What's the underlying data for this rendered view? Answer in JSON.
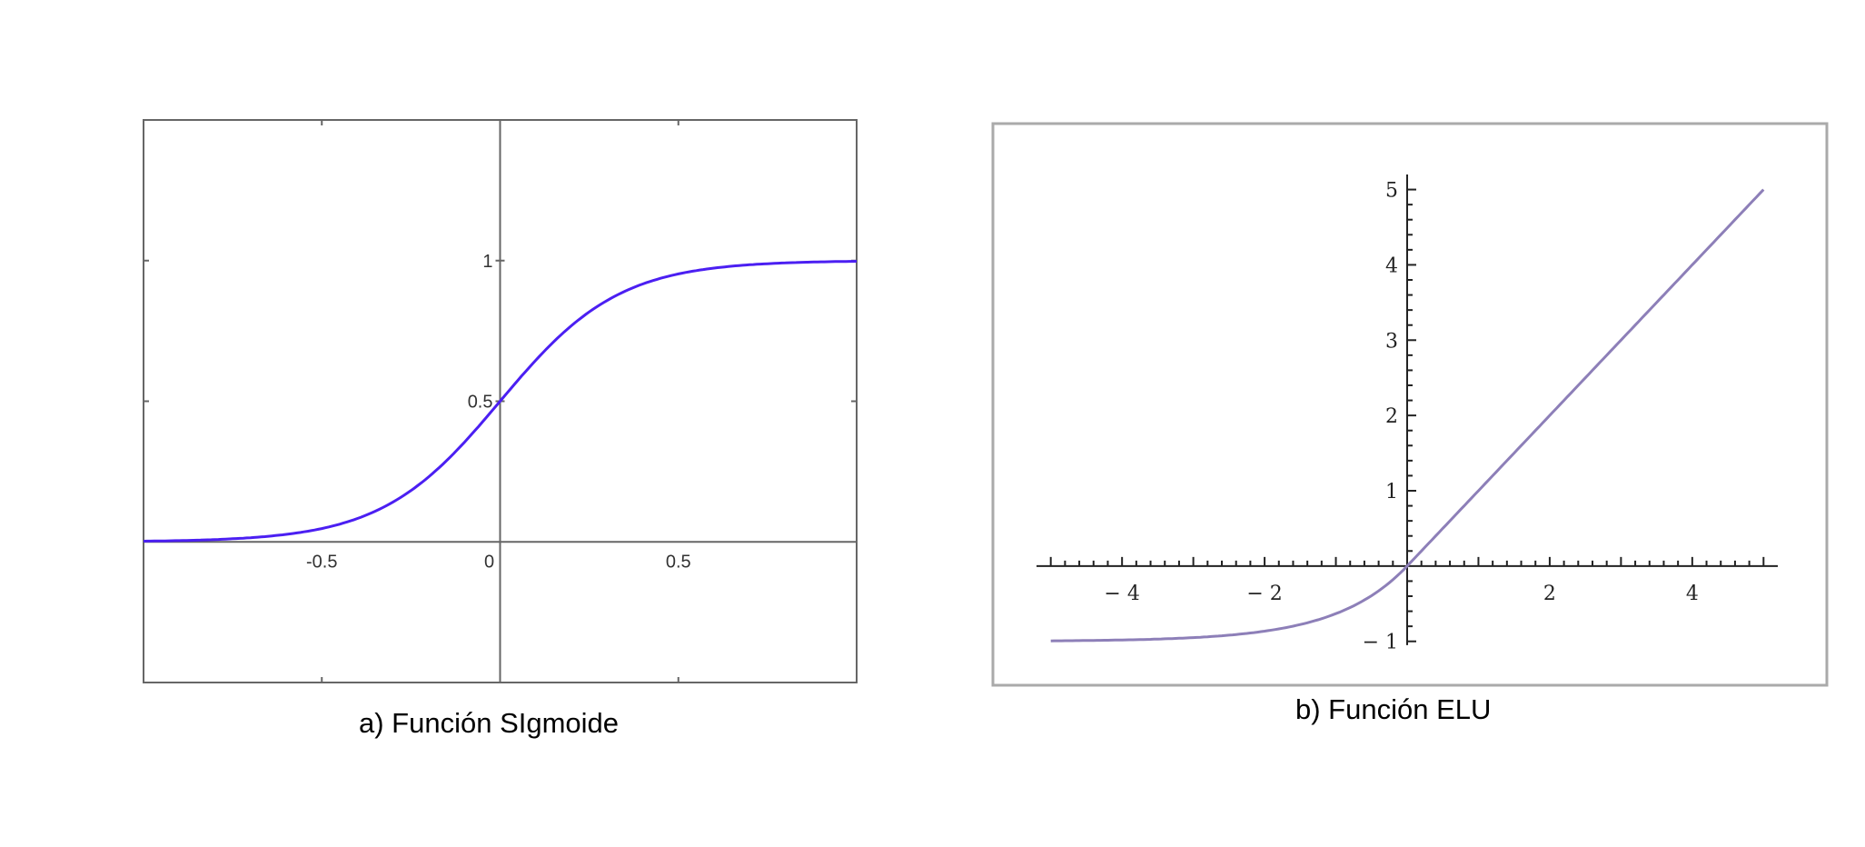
{
  "chart_data": [
    {
      "type": "line",
      "caption": "a) Función SIgmoide",
      "title": "",
      "xlabel": "",
      "ylabel": "",
      "xlim": [
        -1,
        1
      ],
      "ylim": [
        -0.5,
        1.5
      ],
      "x_ticks": [
        -0.5,
        0,
        0.5
      ],
      "x_tick_labels": [
        "-0.5",
        "0",
        "0.5"
      ],
      "y_ticks": [
        0.5,
        1
      ],
      "y_tick_labels": [
        "0.5",
        "1"
      ],
      "grid": false,
      "frame": true,
      "series": [
        {
          "color": "#4b1ff2",
          "x": [
            -1,
            -0.9,
            -0.8,
            -0.7,
            -0.6,
            -0.5,
            -0.4,
            -0.3,
            -0.2,
            -0.1,
            0,
            0.1,
            0.2,
            0.3,
            0.4,
            0.5,
            0.6,
            0.7,
            0.8,
            0.9,
            1
          ],
          "y": [
            0.002,
            0.004,
            0.008,
            0.018,
            0.035,
            0.063,
            0.11,
            0.19,
            0.29,
            0.38,
            0.5,
            0.62,
            0.71,
            0.81,
            0.89,
            0.937,
            0.965,
            0.982,
            0.99,
            0.996,
            0.998
          ]
        }
      ]
    },
    {
      "type": "line",
      "caption": "b) Función ELU",
      "title": "",
      "xlabel": "",
      "ylabel": "",
      "xlim": [
        -5.2,
        5.2
      ],
      "ylim": [
        -1.1,
        5.2
      ],
      "x_ticks": [
        -4,
        -2,
        2,
        4
      ],
      "x_tick_labels": [
        "− 4",
        "− 2",
        "2",
        "4"
      ],
      "y_ticks": [
        -1,
        1,
        2,
        3,
        4,
        5
      ],
      "y_tick_labels": [
        "− 1",
        "1",
        "2",
        "3",
        "4",
        "5"
      ],
      "grid": false,
      "frame": true,
      "series": [
        {
          "color": "#8d7fb8",
          "x": [
            -5,
            -4.5,
            -4,
            -3.5,
            -3,
            -2.5,
            -2,
            -1.5,
            -1,
            -0.75,
            -0.5,
            -0.25,
            0,
            1,
            2,
            3,
            4,
            5
          ],
          "y": [
            -0.993,
            -0.989,
            -0.982,
            -0.97,
            -0.95,
            -0.918,
            -0.865,
            -0.777,
            -0.632,
            -0.528,
            -0.393,
            -0.221,
            0,
            1,
            2,
            3,
            4,
            5
          ]
        }
      ]
    }
  ]
}
